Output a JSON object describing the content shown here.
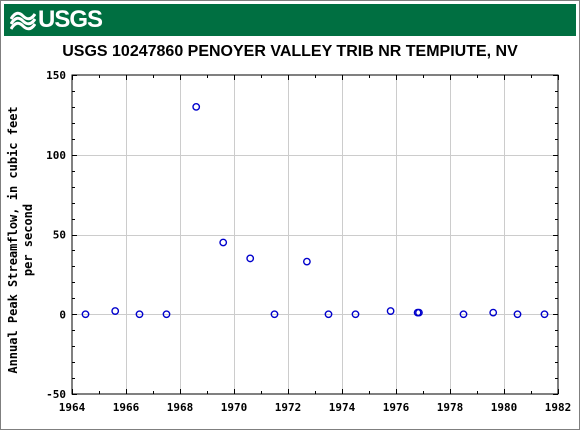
{
  "header": {
    "logo_text": "USGS",
    "logo_icon": "usgs-wave-icon",
    "banner_color": "#006f41"
  },
  "chart_data": {
    "type": "scatter",
    "title": "USGS 10247860 PENOYER VALLEY TRIB NR TEMPIUTE, NV",
    "xlabel": "",
    "ylabel": "Annual Peak Streamflow, in cubic feet per second",
    "ylabel_lines": [
      "Annual Peak Streamflow, in cubic feet",
      "per second"
    ],
    "xlim": [
      1964,
      1982
    ],
    "ylim": [
      -50,
      150
    ],
    "x_ticks": [
      1964,
      1966,
      1968,
      1970,
      1972,
      1974,
      1976,
      1978,
      1980,
      1982
    ],
    "y_ticks": [
      -50,
      0,
      50,
      100,
      150
    ],
    "grid": true,
    "marker_color": "#0000cc",
    "points": [
      {
        "x": 1964.5,
        "y": 0
      },
      {
        "x": 1965.6,
        "y": 2
      },
      {
        "x": 1966.5,
        "y": 0
      },
      {
        "x": 1967.5,
        "y": 0
      },
      {
        "x": 1968.6,
        "y": 130
      },
      {
        "x": 1969.6,
        "y": 45
      },
      {
        "x": 1970.6,
        "y": 35
      },
      {
        "x": 1971.5,
        "y": 0
      },
      {
        "x": 1972.7,
        "y": 33
      },
      {
        "x": 1973.5,
        "y": 0
      },
      {
        "x": 1974.5,
        "y": 0
      },
      {
        "x": 1975.8,
        "y": 2
      },
      {
        "x": 1976.8,
        "y": 1
      },
      {
        "x": 1976.85,
        "y": 1
      },
      {
        "x": 1978.5,
        "y": 0
      },
      {
        "x": 1979.6,
        "y": 1
      },
      {
        "x": 1980.5,
        "y": 0
      },
      {
        "x": 1981.5,
        "y": 0
      }
    ]
  }
}
